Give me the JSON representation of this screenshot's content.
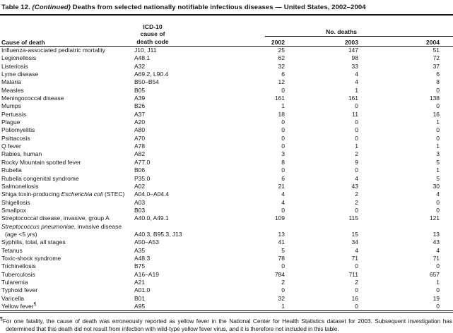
{
  "colors": {
    "text": "#161616",
    "background": "#ffffff",
    "rule": "#161616"
  },
  "title": {
    "label": "Table 12. ",
    "continued": "(Continued)",
    "text": " Deaths from selected nationally notifiable infectious diseases — United States, 2002–2004"
  },
  "table": {
    "columns": {
      "cause": "Cause of death",
      "code_lines": [
        "ICD-10",
        "cause of",
        "death code"
      ],
      "group": "No. deaths",
      "years": [
        "2002",
        "2003",
        "2004"
      ]
    },
    "rows": [
      {
        "name": [
          {
            "t": "Influenza-associated pediatric mortality"
          }
        ],
        "code": "J10, J11",
        "values": [
          "25",
          "147",
          "51"
        ]
      },
      {
        "name": [
          {
            "t": "Legionellosis"
          }
        ],
        "code": "A48.1",
        "values": [
          "62",
          "98",
          "72"
        ]
      },
      {
        "name": [
          {
            "t": "Listeriosis"
          }
        ],
        "code": "A32",
        "values": [
          "32",
          "33",
          "37"
        ]
      },
      {
        "name": [
          {
            "t": "Lyme disease"
          }
        ],
        "code": "A69.2, L90.4",
        "values": [
          "6",
          "4",
          "6"
        ]
      },
      {
        "name": [
          {
            "t": "Malaria"
          }
        ],
        "code": "B50–B54",
        "values": [
          "12",
          "4",
          "8"
        ]
      },
      {
        "name": [
          {
            "t": "Measles"
          }
        ],
        "code": "B05",
        "values": [
          "0",
          "1",
          "0"
        ]
      },
      {
        "name": [
          {
            "t": "Meningococcal disease"
          }
        ],
        "code": "A39",
        "values": [
          "161",
          "161",
          "138"
        ]
      },
      {
        "name": [
          {
            "t": "Mumps"
          }
        ],
        "code": "B26",
        "values": [
          "1",
          "0",
          "0"
        ]
      },
      {
        "name": [
          {
            "t": "Pertussis"
          }
        ],
        "code": "A37",
        "values": [
          "18",
          "11",
          "16"
        ]
      },
      {
        "name": [
          {
            "t": "Plague"
          }
        ],
        "code": "A20",
        "values": [
          "0",
          "0",
          "1"
        ]
      },
      {
        "name": [
          {
            "t": "Poliomyelitis"
          }
        ],
        "code": "A80",
        "values": [
          "0",
          "0",
          "0"
        ]
      },
      {
        "name": [
          {
            "t": "Psittacosis"
          }
        ],
        "code": "A70",
        "values": [
          "0",
          "0",
          "0"
        ]
      },
      {
        "name": [
          {
            "t": "Q fever"
          }
        ],
        "code": "A78",
        "values": [
          "0",
          "1",
          "1"
        ]
      },
      {
        "name": [
          {
            "t": "Rabies, human"
          }
        ],
        "code": "A82",
        "values": [
          "3",
          "2",
          "3"
        ]
      },
      {
        "name": [
          {
            "t": "Rocky Mountain spotted fever"
          }
        ],
        "code": "A77.0",
        "values": [
          "8",
          "9",
          "5"
        ]
      },
      {
        "name": [
          {
            "t": "Rubella"
          }
        ],
        "code": "B06",
        "values": [
          "0",
          "0",
          "1"
        ]
      },
      {
        "name": [
          {
            "t": "Rubella congenital syndrome"
          }
        ],
        "code": "P35.0",
        "values": [
          "6",
          "4",
          "5"
        ]
      },
      {
        "name": [
          {
            "t": "Salmonellosis"
          }
        ],
        "code": "A02",
        "values": [
          "21",
          "43",
          "30"
        ]
      },
      {
        "name": [
          {
            "t": "Shiga toxin-producing "
          },
          {
            "t": "Escherichia coli",
            "i": true
          },
          {
            "t": " (STEC)"
          }
        ],
        "code": "A04.0–A04.4",
        "values": [
          "4",
          "2",
          "4"
        ]
      },
      {
        "name": [
          {
            "t": "Shigellosis"
          }
        ],
        "code": "A03",
        "values": [
          "4",
          "2",
          "0"
        ]
      },
      {
        "name": [
          {
            "t": "Smallpox"
          }
        ],
        "code": "B03",
        "values": [
          "0",
          "0",
          "0"
        ]
      },
      {
        "name": [
          {
            "t": "Streptococcal disease, invasive, group A"
          }
        ],
        "code": "A40.0, A49.1",
        "values": [
          "109",
          "115",
          "121"
        ]
      },
      {
        "name": [
          {
            "t": "Streptococcus pneumoniae,",
            "i": true
          },
          {
            "t": " invasive disease"
          }
        ],
        "name2": "(age <5 yrs)",
        "code": "A40.3, B95.3, J13",
        "values": [
          "13",
          "15",
          "13"
        ]
      },
      {
        "name": [
          {
            "t": "Syphilis, total, all stages"
          }
        ],
        "code": "A50–A53",
        "values": [
          "41",
          "34",
          "43"
        ]
      },
      {
        "name": [
          {
            "t": "Tetanus"
          }
        ],
        "code": "A35",
        "values": [
          "5",
          "4",
          "4"
        ]
      },
      {
        "name": [
          {
            "t": "Toxic-shock syndrome"
          }
        ],
        "code": "A48.3",
        "values": [
          "78",
          "71",
          "71"
        ]
      },
      {
        "name": [
          {
            "t": "Trichinellosis"
          }
        ],
        "code": "B75",
        "values": [
          "0",
          "0",
          "0"
        ]
      },
      {
        "name": [
          {
            "t": "Tuberculosis"
          }
        ],
        "code": "A16–A19",
        "values": [
          "784",
          "711",
          "657"
        ]
      },
      {
        "name": [
          {
            "t": "Tularemia"
          }
        ],
        "code": "A21",
        "values": [
          "2",
          "2",
          "1"
        ]
      },
      {
        "name": [
          {
            "t": "Typhoid fever"
          }
        ],
        "code": "A01.0",
        "values": [
          "0",
          "0",
          "0"
        ]
      },
      {
        "name": [
          {
            "t": "Varicella"
          }
        ],
        "code": "B01",
        "values": [
          "32",
          "16",
          "19"
        ]
      },
      {
        "name": [
          {
            "t": "Yellow fever"
          }
        ],
        "sup": "¶",
        "code": "A95",
        "values": [
          "1",
          "0",
          "0"
        ]
      }
    ]
  },
  "footnote": {
    "marker": "¶",
    "text": "For one fatality, the cause of death was erroneously reported as yellow fever in the National Center for Health Statistics dataset for 2003. Subsequent investigation has determined that this death did not result from infection with wild-type yellow fever virus, and it is therefore not included in this table."
  }
}
